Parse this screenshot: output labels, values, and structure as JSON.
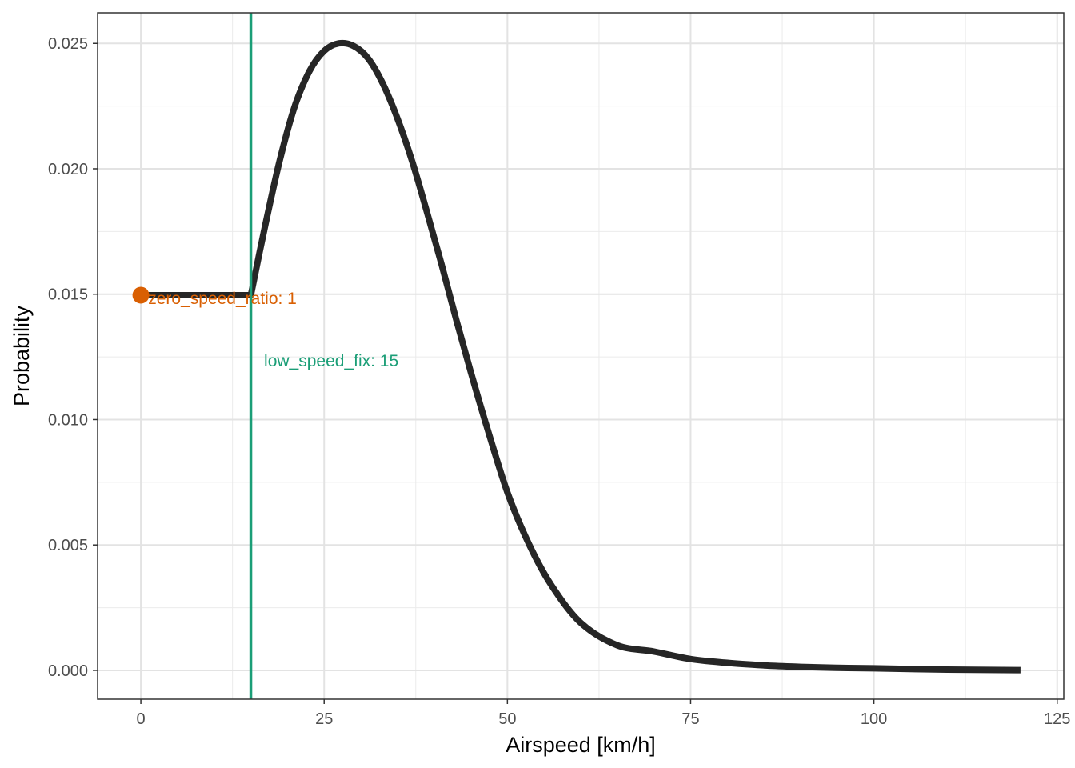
{
  "chart_data": {
    "type": "line",
    "xlabel": "Airspeed [km/h]",
    "ylabel": "Probability",
    "xlim": [
      -5.9,
      125.9
    ],
    "ylim": [
      -0.00115,
      0.02622
    ],
    "x_ticks": [
      0,
      25,
      50,
      75,
      100,
      125
    ],
    "x_tick_labels": [
      "0",
      "25",
      "50",
      "75",
      "100",
      "125"
    ],
    "y_ticks": [
      0,
      0.005,
      0.01,
      0.015,
      0.02,
      0.025
    ],
    "y_tick_labels": [
      "0.000",
      "0.005",
      "0.010",
      "0.015",
      "0.020",
      "0.025"
    ],
    "grid": true,
    "series": [
      {
        "color": "#262626",
        "x": [
          0,
          15,
          17,
          19,
          21,
          23,
          25,
          27,
          29,
          31,
          33,
          35,
          37,
          39,
          41,
          43,
          45,
          47,
          50,
          53,
          56,
          60,
          65,
          70,
          75,
          80,
          85,
          90,
          95,
          100,
          110,
          120
        ],
        "y": [
          0.01496,
          0.01496,
          0.0178,
          0.0204,
          0.0225,
          0.0239,
          0.0247,
          0.025,
          0.0249,
          0.0244,
          0.0234,
          0.022,
          0.0203,
          0.0183,
          0.0162,
          0.014,
          0.0119,
          0.0099,
          0.0071,
          0.005,
          0.0034,
          0.0019,
          0.001,
          0.00075,
          0.00045,
          0.0003,
          0.0002,
          0.00014,
          0.0001,
          8e-05,
          3e-05,
          1e-05
        ]
      }
    ],
    "point": {
      "x": 0,
      "y": 0.01496,
      "color": "#d95f02"
    },
    "vline": {
      "x": 15,
      "color": "#1b9e77"
    },
    "annotations": [
      {
        "text": "zero_speed_ratio: 1",
        "x": 1,
        "y": 0.0149,
        "color": "#d95f02"
      },
      {
        "text": "low_speed_fix: 15",
        "x": 16.8,
        "y": 0.0124,
        "color": "#1b9e77"
      }
    ]
  }
}
